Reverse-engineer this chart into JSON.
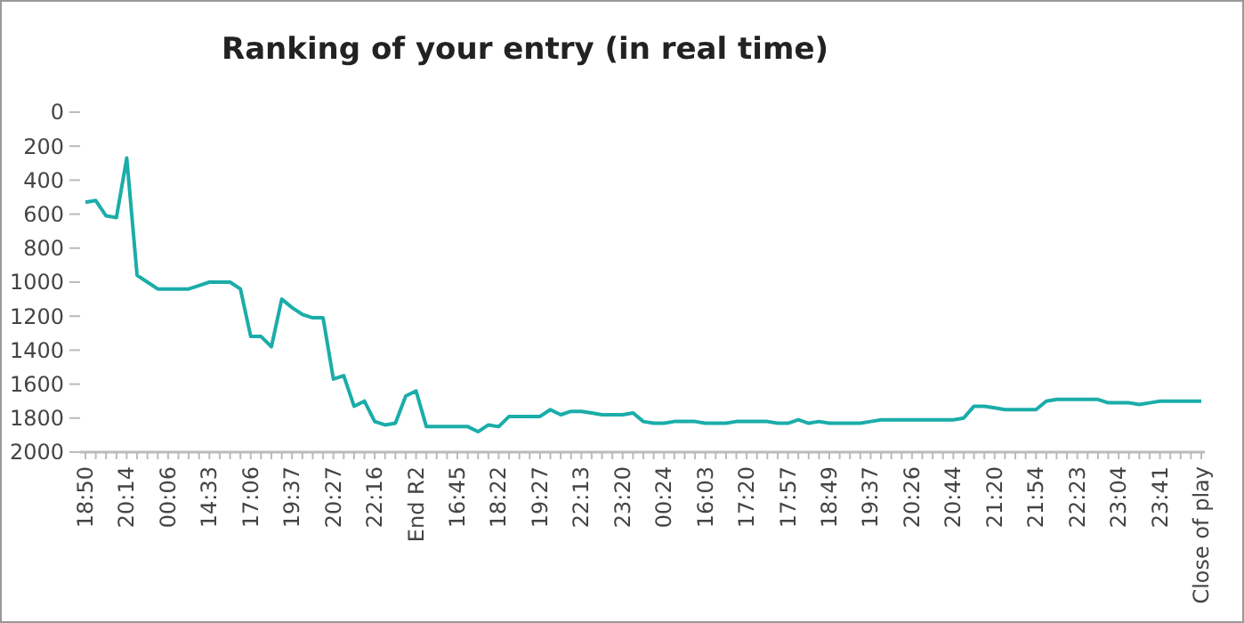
{
  "chart_data": {
    "type": "line",
    "title": "Ranking of your entry (in real time)",
    "categories": [
      "18:50",
      null,
      null,
      null,
      "20:14",
      null,
      null,
      null,
      "00:06",
      null,
      null,
      null,
      "14:33",
      null,
      null,
      null,
      "17:06",
      null,
      null,
      null,
      "19:37",
      null,
      null,
      null,
      "20:27",
      null,
      null,
      null,
      "22:16",
      null,
      null,
      null,
      "End R2",
      null,
      null,
      null,
      "16:45",
      null,
      null,
      null,
      "18:22",
      null,
      null,
      null,
      "19:27",
      null,
      null,
      null,
      "22:13",
      null,
      null,
      null,
      "23:20",
      null,
      null,
      null,
      "00:24",
      null,
      null,
      null,
      "16:03",
      null,
      null,
      null,
      "17:20",
      null,
      null,
      null,
      "17:57",
      null,
      null,
      null,
      "18:49",
      null,
      null,
      null,
      "19:37",
      null,
      null,
      null,
      "20:26",
      null,
      null,
      null,
      "20:44",
      null,
      null,
      null,
      "21:20",
      null,
      null,
      null,
      "21:54",
      null,
      null,
      null,
      "22:23",
      null,
      null,
      null,
      "23:04",
      null,
      null,
      null,
      "23:41",
      null,
      null,
      null,
      "Close of play"
    ],
    "series": [
      {
        "color": "#1aada9",
        "values": [
          530,
          520,
          610,
          620,
          270,
          960,
          1000,
          1040,
          1040,
          1040,
          1040,
          1020,
          1000,
          1000,
          1000,
          1040,
          1320,
          1320,
          1380,
          1100,
          1150,
          1190,
          1210,
          1210,
          1570,
          1550,
          1730,
          1700,
          1820,
          1840,
          1830,
          1670,
          1640,
          1850,
          1850,
          1850,
          1850,
          1850,
          1880,
          1840,
          1850,
          1790,
          1790,
          1790,
          1790,
          1750,
          1780,
          1760,
          1760,
          1770,
          1780,
          1780,
          1780,
          1770,
          1820,
          1830,
          1830,
          1820,
          1820,
          1820,
          1830,
          1830,
          1830,
          1820,
          1820,
          1820,
          1820,
          1830,
          1830,
          1810,
          1830,
          1820,
          1830,
          1830,
          1830,
          1830,
          1820,
          1810,
          1810,
          1810,
          1810,
          1810,
          1810,
          1810,
          1810,
          1800,
          1730,
          1730,
          1740,
          1750,
          1750,
          1750,
          1750,
          1700,
          1690,
          1690,
          1690,
          1690,
          1690,
          1710,
          1710,
          1710,
          1720,
          1710,
          1700,
          1700,
          1700,
          1700,
          1700
        ]
      }
    ],
    "ylim": [
      2000,
      0
    ],
    "yticks": [
      0,
      200,
      400,
      600,
      800,
      1000,
      1200,
      1400,
      1600,
      1800,
      2000
    ],
    "grid": false,
    "marker": "none",
    "line_style": "solid"
  }
}
